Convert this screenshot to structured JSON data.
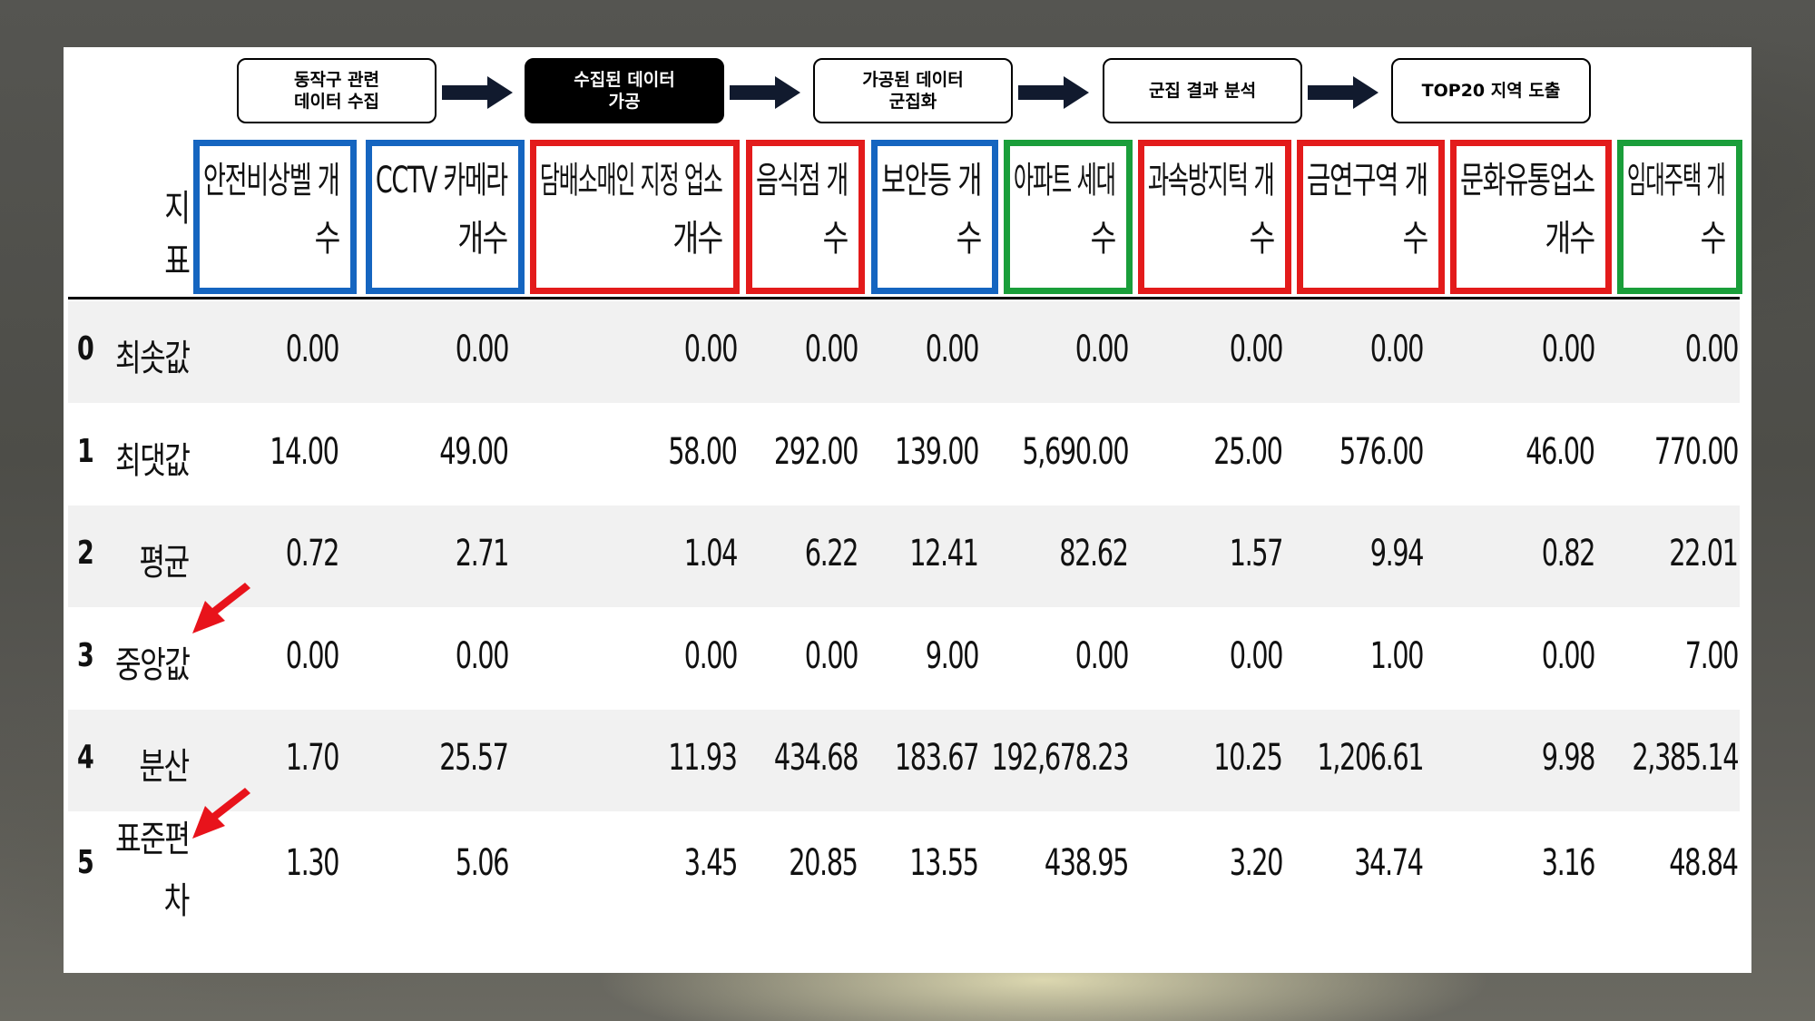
{
  "flow": {
    "steps": [
      {
        "label": "동작구 관련\n데이터 수집",
        "dark": false
      },
      {
        "label": "수집된 데이터\n가공",
        "dark": true
      },
      {
        "label": "가공된 데이터\n군집화",
        "dark": false
      },
      {
        "label": "군집 결과 분석",
        "dark": false
      },
      {
        "label": "TOP20 지역 도출",
        "dark": false
      }
    ]
  },
  "table": {
    "index_header": "지표",
    "columns": [
      {
        "line1": "안전비상벨 개",
        "line2": "수",
        "border": "#1565c0"
      },
      {
        "line1": "CCTV 카메라",
        "line2": "개수",
        "border": "#1565c0"
      },
      {
        "line1": "담배소매인 지정 업소",
        "line2": "개수",
        "border": "#e31b1b"
      },
      {
        "line1": "음식점 개",
        "line2": "수",
        "border": "#e31b1b"
      },
      {
        "line1": "보안등 개",
        "line2": "수",
        "border": "#1565c0"
      },
      {
        "line1": "아파트 세대",
        "line2": "수",
        "border": "#1a9e3a"
      },
      {
        "line1": "과속방지턱 개",
        "line2": "수",
        "border": "#e31b1b"
      },
      {
        "line1": "금연구역 개",
        "line2": "수",
        "border": "#e31b1b"
      },
      {
        "line1": "문화유통업소",
        "line2": "개수",
        "border": "#e31b1b"
      },
      {
        "line1": "임대주택 개",
        "line2": "수",
        "border": "#1a9e3a"
      }
    ],
    "rows": [
      {
        "index": "0",
        "label": "최솟값",
        "label2": "",
        "values": [
          "0.00",
          "0.00",
          "0.00",
          "0.00",
          "0.00",
          "0.00",
          "0.00",
          "0.00",
          "0.00",
          "0.00"
        ]
      },
      {
        "index": "1",
        "label": "최댓값",
        "label2": "",
        "values": [
          "14.00",
          "49.00",
          "58.00",
          "292.00",
          "139.00",
          "5,690.00",
          "25.00",
          "576.00",
          "46.00",
          "770.00"
        ]
      },
      {
        "index": "2",
        "label": "평균",
        "label2": "",
        "values": [
          "0.72",
          "2.71",
          "1.04",
          "6.22",
          "12.41",
          "82.62",
          "1.57",
          "9.94",
          "0.82",
          "22.01"
        ]
      },
      {
        "index": "3",
        "label": "중앙값",
        "label2": "",
        "values": [
          "0.00",
          "0.00",
          "0.00",
          "0.00",
          "9.00",
          "0.00",
          "0.00",
          "1.00",
          "0.00",
          "7.00"
        ]
      },
      {
        "index": "4",
        "label": "분산",
        "label2": "",
        "values": [
          "1.70",
          "25.57",
          "11.93",
          "434.68",
          "183.67",
          "192,678.23",
          "10.25",
          "1,206.61",
          "9.98",
          "2,385.14"
        ]
      },
      {
        "index": "5",
        "label": "표준편",
        "label2": "차",
        "values": [
          "1.30",
          "5.06",
          "3.45",
          "20.85",
          "13.55",
          "438.95",
          "3.20",
          "34.74",
          "3.16",
          "48.84"
        ]
      }
    ]
  },
  "colors": {
    "blue": "#1565c0",
    "red": "#e31b1b",
    "green": "#1a9e3a",
    "arrow_red": "#e8131b",
    "flow_arrow": "#111a2e"
  }
}
